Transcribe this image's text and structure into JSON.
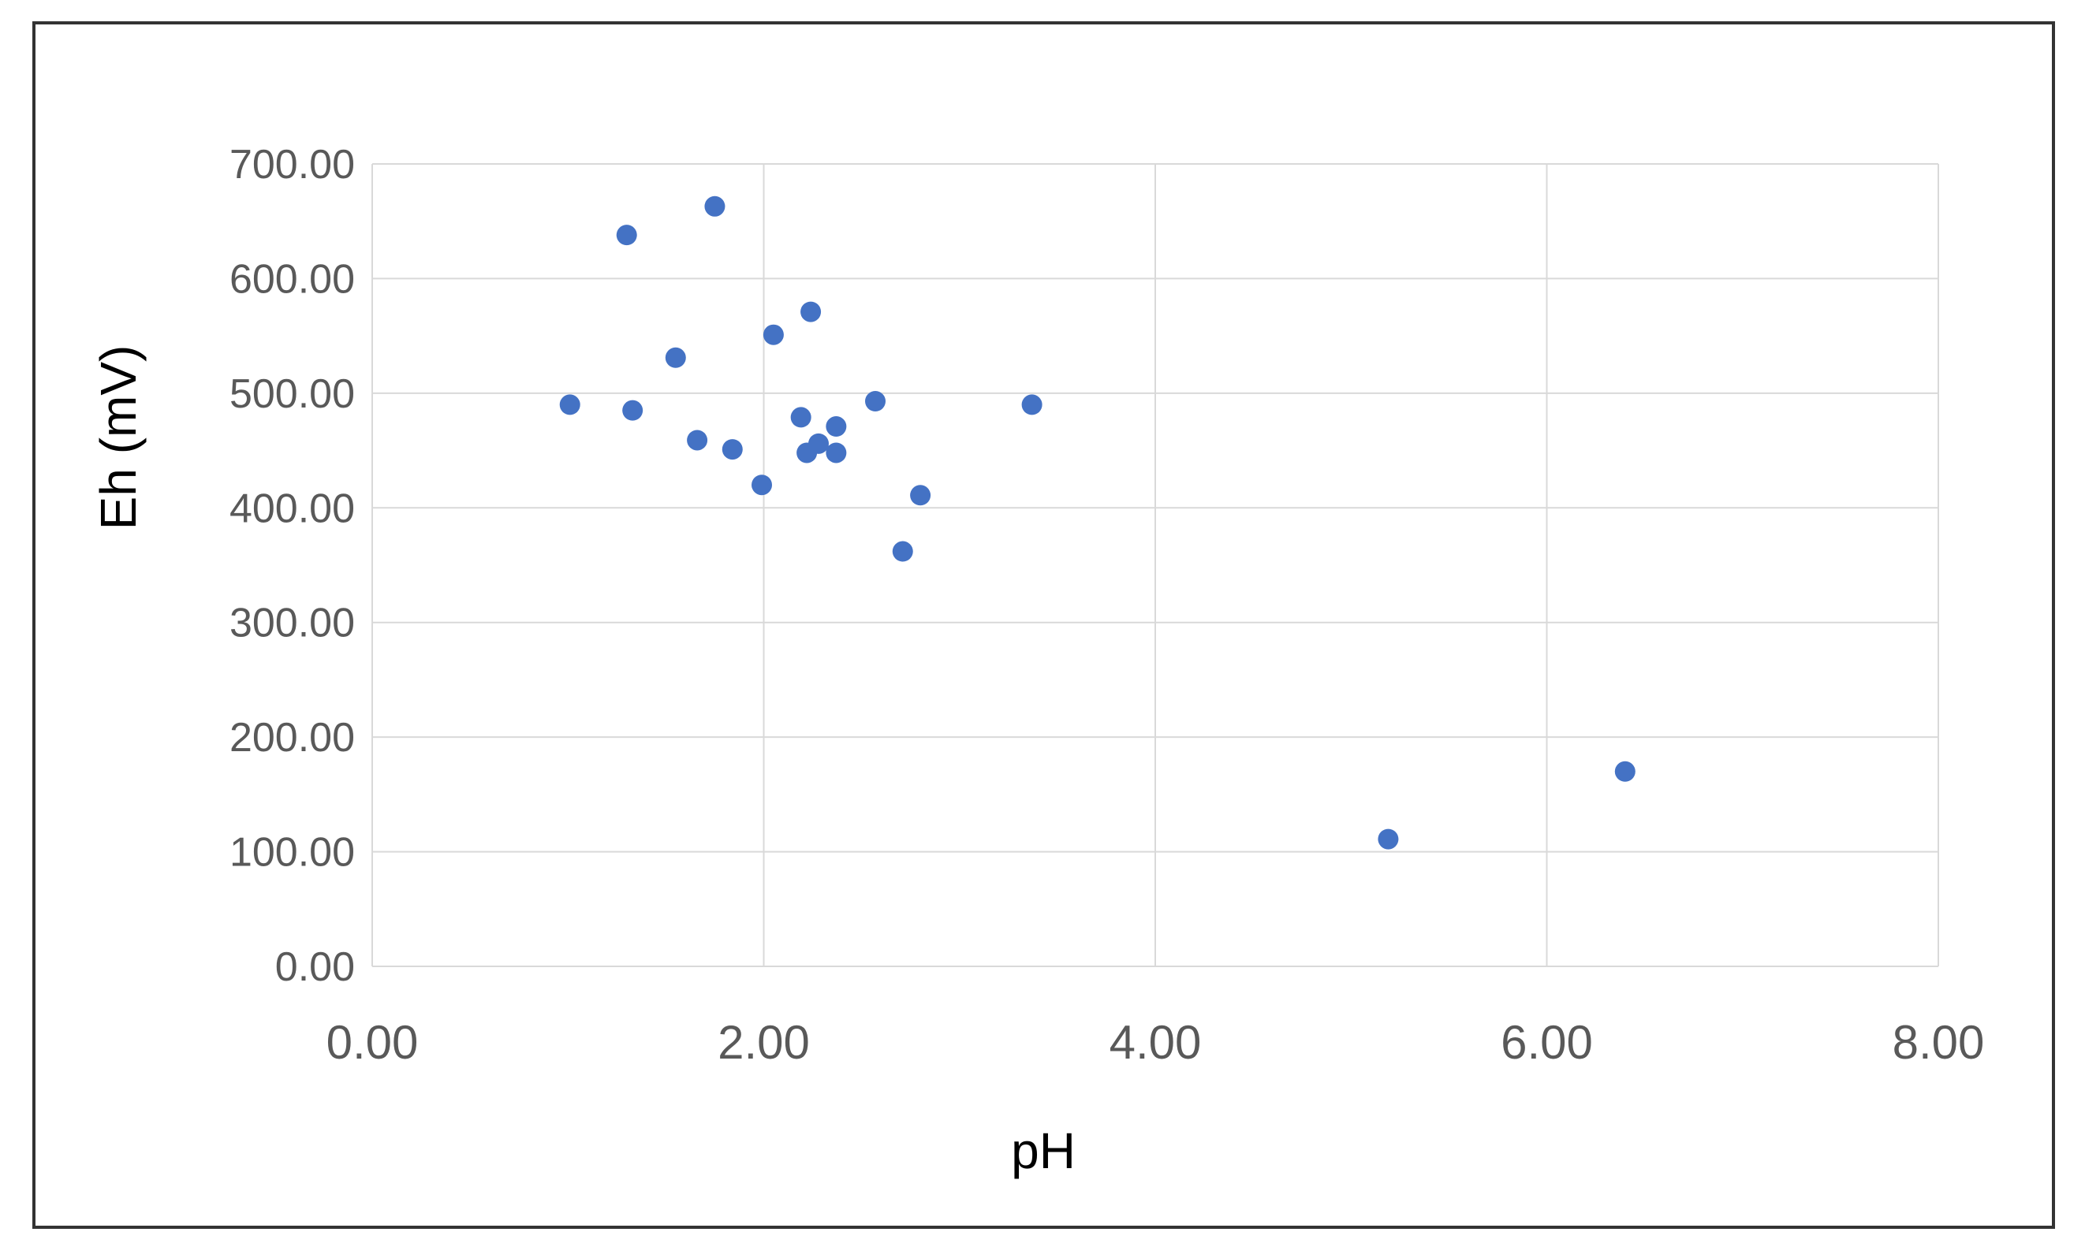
{
  "chart_data": {
    "type": "scatter",
    "title": "",
    "xlabel": "pH",
    "ylabel": "Eh (mV)",
    "xlim": [
      0,
      8
    ],
    "ylim": [
      0,
      700
    ],
    "x_ticks": [
      0,
      2,
      4,
      6,
      8
    ],
    "y_ticks": [
      0,
      100,
      200,
      300,
      400,
      500,
      600,
      700
    ],
    "x_tick_labels": [
      "0.00",
      "2.00",
      "4.00",
      "6.00",
      "8.00"
    ],
    "y_tick_labels": [
      "0.00",
      "100.00",
      "200.00",
      "300.00",
      "400.00",
      "500.00",
      "600.00",
      "700.00"
    ],
    "grid": true,
    "legend": "none",
    "marker_color": "#4472C4",
    "gridline_color": "#D9D9D9",
    "series": [
      {
        "points": [
          {
            "x": 1.01,
            "y": 490
          },
          {
            "x": 1.3,
            "y": 638
          },
          {
            "x": 1.33,
            "y": 485
          },
          {
            "x": 1.55,
            "y": 531
          },
          {
            "x": 1.66,
            "y": 459
          },
          {
            "x": 1.75,
            "y": 663
          },
          {
            "x": 1.84,
            "y": 451
          },
          {
            "x": 1.99,
            "y": 420
          },
          {
            "x": 2.05,
            "y": 551
          },
          {
            "x": 2.19,
            "y": 479
          },
          {
            "x": 2.22,
            "y": 448
          },
          {
            "x": 2.24,
            "y": 571
          },
          {
            "x": 2.28,
            "y": 456
          },
          {
            "x": 2.37,
            "y": 471
          },
          {
            "x": 2.37,
            "y": 448
          },
          {
            "x": 2.57,
            "y": 493
          },
          {
            "x": 2.71,
            "y": 362
          },
          {
            "x": 2.8,
            "y": 411
          },
          {
            "x": 3.37,
            "y": 490
          },
          {
            "x": 5.19,
            "y": 111
          },
          {
            "x": 6.4,
            "y": 170
          }
        ]
      }
    ]
  }
}
